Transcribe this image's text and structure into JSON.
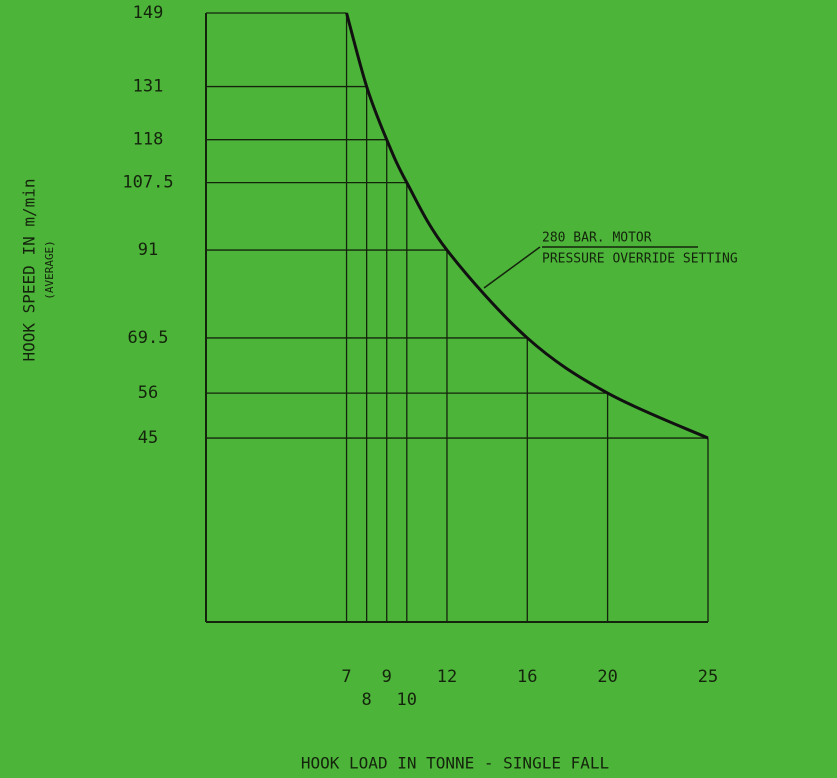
{
  "chart_data": {
    "type": "line",
    "x_label": "HOOK LOAD IN TONNE - SINGLE FALL",
    "y_label": "HOOK SPEED IN m/min",
    "y_sublabel": "(AVERAGE)",
    "annotation": [
      "280 BAR. MOTOR",
      "PRESSURE OVERRIDE SETTING"
    ],
    "x": [
      7,
      8,
      9,
      10,
      12,
      16,
      20,
      25
    ],
    "values": [
      149,
      131,
      118,
      107.5,
      91,
      69.5,
      56,
      45
    ],
    "color": "#111111",
    "xlim": [
      0,
      25
    ],
    "xticks": [
      7,
      8,
      9,
      10,
      12,
      16,
      20,
      25
    ],
    "ylim": [
      0,
      149
    ],
    "yticks": [
      45,
      56,
      69.5,
      91,
      107.5,
      118,
      131,
      149
    ],
    "grid": true
  }
}
